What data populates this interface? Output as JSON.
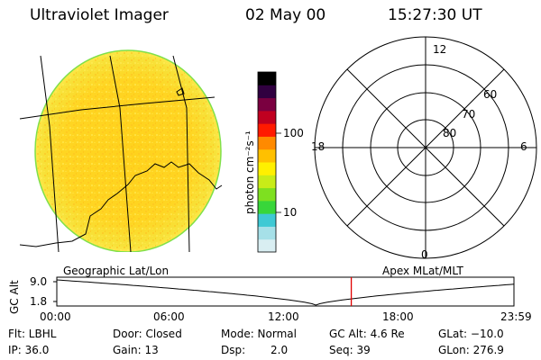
{
  "header": {
    "instrument": "Ultraviolet Imager",
    "date": "02 May 00",
    "time": "15:27:30 UT"
  },
  "colorbar": {
    "unit_label": "photon cm⁻²s⁻¹",
    "ticks": [
      "100",
      "10"
    ],
    "colors": [
      "#d9eef2",
      "#a6e0e8",
      "#3fc9d4",
      "#38d63a",
      "#7ee020",
      "#c8ec18",
      "#fff000",
      "#ffc000",
      "#ff8a00",
      "#ff1a00",
      "#c00020",
      "#7a0040",
      "#300040",
      "#000000"
    ]
  },
  "polar_grid": {
    "mlt_labels": {
      "top": "12",
      "left": "18",
      "right": "6",
      "bottom": "0"
    },
    "lat_labels": [
      "60",
      "70",
      "80"
    ]
  },
  "map_labels": {
    "left": "Geographic Lat/Lon",
    "right": "Apex MLat/MLT"
  },
  "altitude_plot": {
    "ylabel": "GC Alt",
    "yticks": [
      "9.0",
      "1.8"
    ],
    "xticks": [
      "00:00",
      "06:00",
      "12:00",
      "18:00",
      "23:59"
    ],
    "current_time_hours": 15.46
  },
  "status": {
    "flt": "Flt: LBHL",
    "ip": "IP: 36.0",
    "door": "Door: Closed",
    "gain": "Gain: 13",
    "mode": "Mode: Normal",
    "dsp_label": "Dsp:",
    "dsp_value": "2.0",
    "gc_alt": "GC Alt: 4.6 Re",
    "seq": "Seq: 39",
    "glat": "GLat: −10.0",
    "glon": "GLon: 276.9"
  }
}
